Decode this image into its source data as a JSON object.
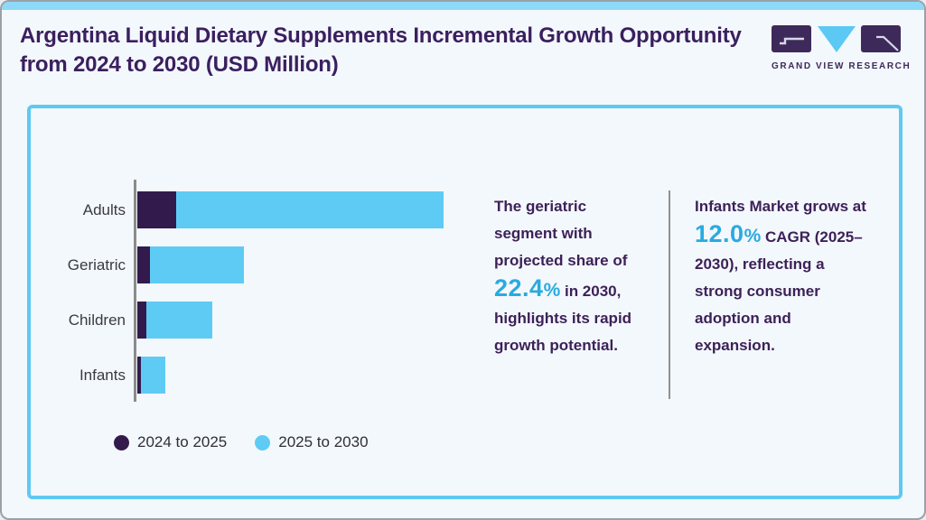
{
  "page": {
    "title": "Argentina Liquid Dietary Supplements Incremental Growth Opportunity from 2024 to 2030 (USD Million)"
  },
  "brand": {
    "name": "GRAND VIEW RESEARCH",
    "logo_purple": "#3e2a5a",
    "logo_blue": "#5bc9f3"
  },
  "chart_data": {
    "type": "bar",
    "orientation": "horizontal",
    "stacked": true,
    "categories": [
      "Adults",
      "Geriatric",
      "Children",
      "Infants"
    ],
    "series": [
      {
        "name": "2024 to 2025",
        "color": "#331a4d",
        "values": [
          43,
          14,
          10,
          4
        ]
      },
      {
        "name": "2025 to 2030",
        "color": "#5ecbf5",
        "values": [
          296,
          104,
          73,
          27
        ]
      }
    ],
    "units": "relative bar length (numeric axis not labeled in source)",
    "xlabel": "",
    "ylabel": "",
    "grid": false,
    "legend_position": "bottom-left",
    "axis_color": "#8b8b8b"
  },
  "annotations": {
    "accent_color": "#29aae1",
    "text_color": "#3d2158",
    "middle": {
      "pre": "The geriatric segment with projected share of ",
      "highlight_value": "22.4",
      "highlight_unit": "%",
      "post": " in 2030, highlights its rapid growth potential."
    },
    "right": {
      "pre": "Infants Market grows at ",
      "highlight_value": "12.0",
      "highlight_unit": "%",
      "post": " CAGR (2025–2030), reflecting a strong consumer adoption and expansion."
    }
  }
}
